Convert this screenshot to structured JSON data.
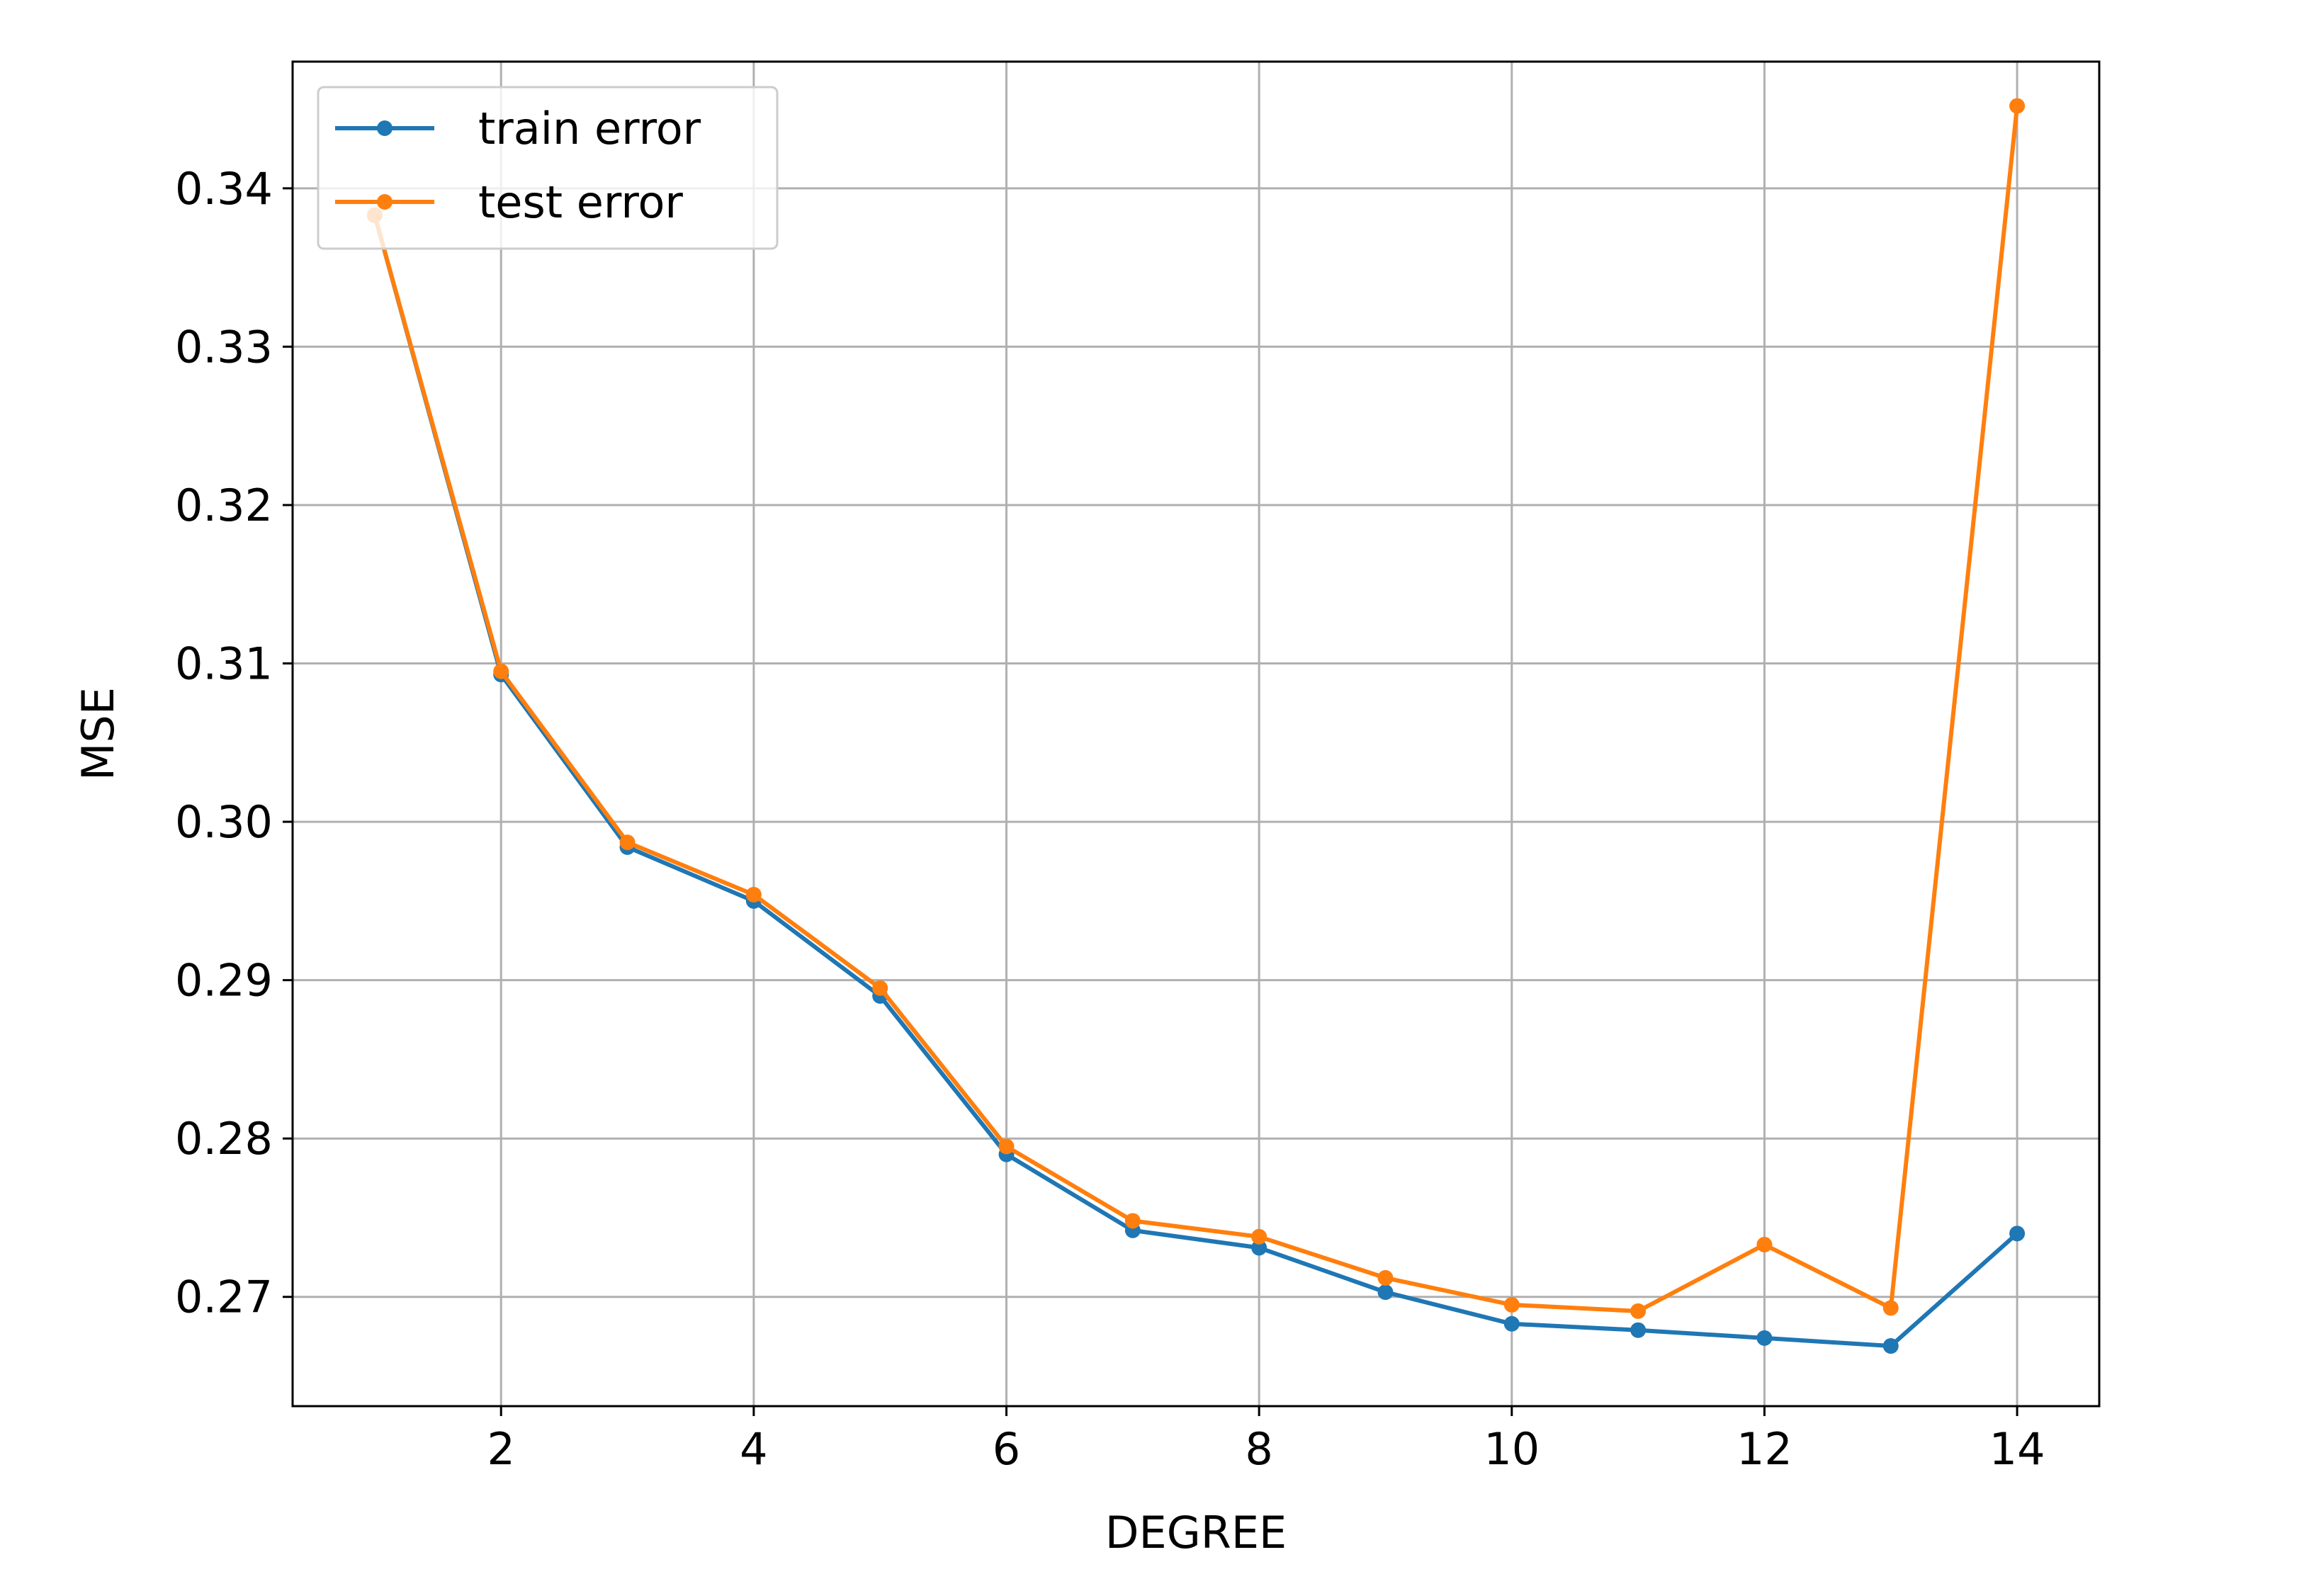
{
  "chart_data": {
    "type": "line",
    "title": "",
    "xlabel": "DEGREE",
    "ylabel": "MSE",
    "xlim": [
      0.35,
      14.65
    ],
    "ylim": [
      0.2631,
      0.348
    ],
    "xticks": [
      2,
      4,
      6,
      8,
      10,
      12,
      14
    ],
    "xtick_labels": [
      "2",
      "4",
      "6",
      "8",
      "10",
      "12",
      "14"
    ],
    "yticks": [
      0.27,
      0.28,
      0.29,
      0.3,
      0.31,
      0.32,
      0.33,
      0.34
    ],
    "ytick_labels": [
      "0.27",
      "0.28",
      "0.29",
      "0.30",
      "0.31",
      "0.32",
      "0.33",
      "0.34"
    ],
    "grid": true,
    "legend_position": "upper-left",
    "x": [
      1,
      2,
      3,
      4,
      5,
      6,
      7,
      8,
      9,
      10,
      11,
      12,
      13,
      14
    ],
    "series": [
      {
        "name": "train error",
        "color": "#1f77b4",
        "marker": "dot",
        "values": [
          0.3383,
          0.3093,
          0.2984,
          0.295,
          0.289,
          0.279,
          0.2742,
          0.2731,
          0.2703,
          0.2683,
          0.2679,
          0.2674,
          0.2669,
          0.274
        ]
      },
      {
        "name": "test error",
        "color": "#ff7f0e",
        "marker": "dot",
        "values": [
          0.3383,
          0.3095,
          0.2987,
          0.2954,
          0.2895,
          0.2795,
          0.2748,
          0.2738,
          0.2712,
          0.2695,
          0.2691,
          0.2733,
          0.2693,
          0.3452
        ]
      }
    ]
  }
}
